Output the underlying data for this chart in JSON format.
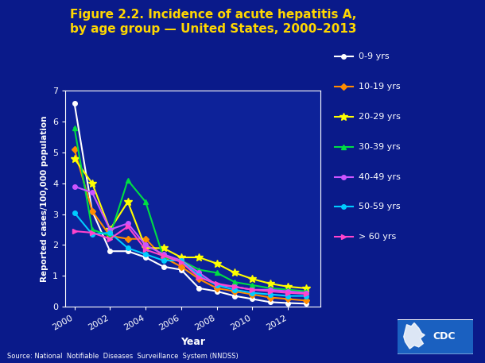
{
  "title": "Figure 2.2. Incidence of acute hepatitis A,\nby age group — United States, 2000–2013",
  "xlabel": "Year",
  "ylabel": "Reported cases/100,000 population",
  "source": "Source: National  Notifiable  Diseases  Surveillance  System (NNDSS)",
  "background_color": "#0a1a8a",
  "plot_bg_color": "#0d2299",
  "title_color": "#ffd700",
  "axis_color": "#ffffff",
  "label_color": "#ffffff",
  "years": [
    2000,
    2001,
    2002,
    2003,
    2004,
    2005,
    2006,
    2007,
    2008,
    2009,
    2010,
    2011,
    2012,
    2013
  ],
  "series": {
    "0-9 yrs": [
      6.6,
      3.1,
      1.8,
      1.8,
      1.6,
      1.3,
      1.2,
      0.6,
      0.5,
      0.35,
      0.25,
      0.15,
      0.12,
      0.1
    ],
    "10-19 yrs": [
      5.1,
      3.1,
      2.3,
      2.2,
      2.2,
      1.6,
      1.3,
      0.9,
      0.6,
      0.5,
      0.4,
      0.3,
      0.25,
      0.2
    ],
    "20-29 yrs": [
      4.8,
      4.0,
      2.5,
      3.4,
      1.9,
      1.9,
      1.6,
      1.6,
      1.4,
      1.1,
      0.9,
      0.75,
      0.65,
      0.6
    ],
    "30-39 yrs": [
      5.8,
      2.5,
      2.3,
      4.1,
      3.4,
      1.6,
      1.5,
      1.2,
      1.1,
      0.8,
      0.7,
      0.6,
      0.55,
      0.5
    ],
    "40-49 yrs": [
      3.9,
      3.7,
      2.5,
      2.7,
      2.0,
      1.7,
      1.5,
      1.1,
      0.7,
      0.65,
      0.55,
      0.55,
      0.5,
      0.45
    ],
    "50-59 yrs": [
      3.05,
      2.35,
      2.4,
      1.9,
      1.7,
      1.5,
      1.5,
      1.0,
      0.7,
      0.55,
      0.45,
      0.4,
      0.35,
      0.35
    ],
    "> 60 yrs": [
      2.45,
      2.4,
      2.2,
      2.6,
      1.85,
      1.65,
      1.45,
      0.95,
      0.75,
      0.65,
      0.55,
      0.5,
      0.45,
      0.42
    ]
  },
  "colors": {
    "0-9 yrs": "#ffffff",
    "10-19 yrs": "#ff8c00",
    "20-29 yrs": "#ffff00",
    "30-39 yrs": "#00dd44",
    "40-49 yrs": "#cc55ff",
    "50-59 yrs": "#00ccff",
    "> 60 yrs": "#ff44cc"
  },
  "markers": {
    "0-9 yrs": "o",
    "10-19 yrs": "D",
    "20-29 yrs": "*",
    "30-39 yrs": "^",
    "40-49 yrs": "o",
    "50-59 yrs": "o",
    "> 60 yrs": ">"
  },
  "ylim": [
    0,
    7
  ],
  "yticks": [
    0,
    1,
    2,
    3,
    4,
    5,
    6,
    7
  ],
  "xticks": [
    2000,
    2002,
    2004,
    2006,
    2008,
    2010,
    2012
  ]
}
